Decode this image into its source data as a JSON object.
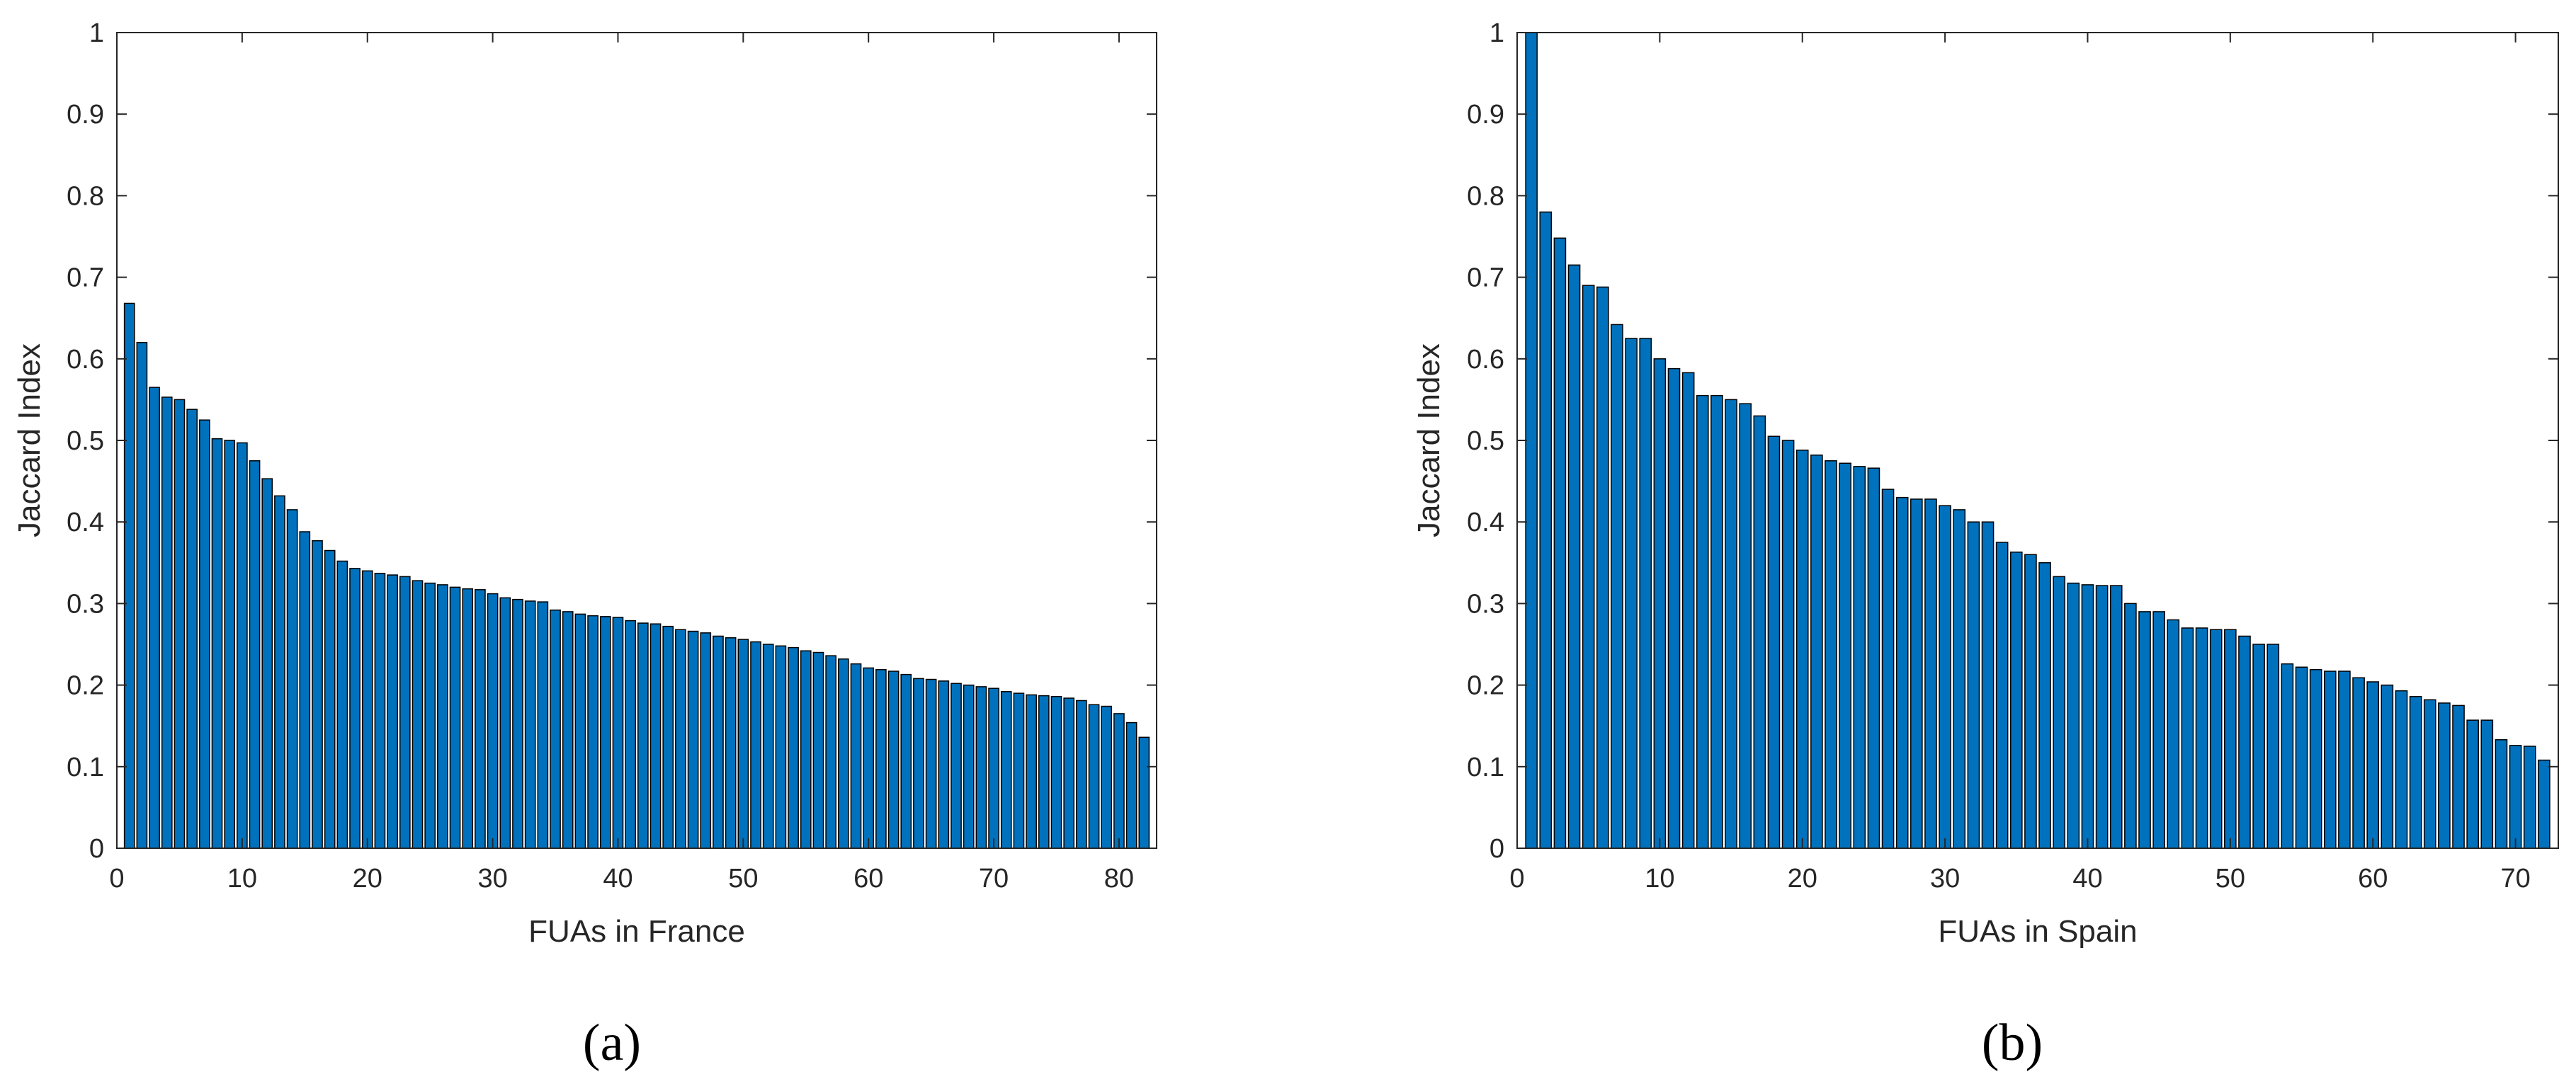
{
  "chart_data": [
    {
      "type": "bar",
      "panel_label": "(a)",
      "xlabel": "FUAs in France",
      "ylabel": "Jaccard Index",
      "xlim": [
        0,
        83
      ],
      "ylim": [
        0,
        1
      ],
      "xticks": [
        0,
        10,
        20,
        30,
        40,
        50,
        60,
        70,
        80
      ],
      "yticks": [
        0,
        0.1,
        0.2,
        0.3,
        0.4,
        0.5,
        0.6,
        0.7,
        0.8,
        0.9,
        1
      ],
      "ytick_labels": [
        "0",
        "0.1",
        "0.2",
        "0.3",
        "0.4",
        "0.5",
        "0.6",
        "0.7",
        "0.8",
        "0.9",
        "1"
      ],
      "grid": false,
      "bar_color": "#0072BD",
      "edge_color": "#000000",
      "values": [
        0.668,
        0.62,
        0.565,
        0.553,
        0.55,
        0.538,
        0.525,
        0.502,
        0.5,
        0.497,
        0.475,
        0.453,
        0.432,
        0.415,
        0.388,
        0.377,
        0.365,
        0.352,
        0.343,
        0.34,
        0.337,
        0.335,
        0.333,
        0.328,
        0.325,
        0.323,
        0.32,
        0.318,
        0.317,
        0.312,
        0.307,
        0.305,
        0.303,
        0.302,
        0.292,
        0.29,
        0.287,
        0.285,
        0.284,
        0.283,
        0.279,
        0.276,
        0.275,
        0.272,
        0.268,
        0.266,
        0.264,
        0.26,
        0.258,
        0.256,
        0.253,
        0.25,
        0.248,
        0.246,
        0.242,
        0.24,
        0.236,
        0.232,
        0.226,
        0.221,
        0.219,
        0.217,
        0.213,
        0.208,
        0.207,
        0.205,
        0.202,
        0.2,
        0.198,
        0.196,
        0.192,
        0.19,
        0.188,
        0.187,
        0.186,
        0.184,
        0.181,
        0.176,
        0.174,
        0.165,
        0.154,
        0.136
      ]
    },
    {
      "type": "bar",
      "panel_label": "(b)",
      "xlabel": "FUAs in Spain",
      "ylabel": "Jaccard Index",
      "xlim": [
        0,
        73
      ],
      "ylim": [
        0,
        1
      ],
      "xticks": [
        0,
        10,
        20,
        30,
        40,
        50,
        60,
        70
      ],
      "yticks": [
        0,
        0.1,
        0.2,
        0.3,
        0.4,
        0.5,
        0.6,
        0.7,
        0.8,
        0.9,
        1
      ],
      "ytick_labels": [
        "0",
        "0.1",
        "0.2",
        "0.3",
        "0.4",
        "0.5",
        "0.6",
        "0.7",
        "0.8",
        "0.9",
        "1"
      ],
      "grid": false,
      "bar_color": "#0072BD",
      "edge_color": "#000000",
      "values": [
        1.0,
        0.78,
        0.748,
        0.715,
        0.69,
        0.688,
        0.642,
        0.625,
        0.625,
        0.6,
        0.588,
        0.583,
        0.555,
        0.555,
        0.55,
        0.545,
        0.53,
        0.505,
        0.5,
        0.488,
        0.482,
        0.475,
        0.472,
        0.468,
        0.466,
        0.44,
        0.43,
        0.428,
        0.428,
        0.42,
        0.415,
        0.4,
        0.4,
        0.375,
        0.363,
        0.36,
        0.35,
        0.333,
        0.325,
        0.323,
        0.322,
        0.322,
        0.3,
        0.29,
        0.29,
        0.28,
        0.27,
        0.27,
        0.268,
        0.268,
        0.26,
        0.25,
        0.25,
        0.226,
        0.222,
        0.219,
        0.217,
        0.217,
        0.209,
        0.204,
        0.2,
        0.193,
        0.186,
        0.182,
        0.178,
        0.175,
        0.157,
        0.157,
        0.133,
        0.126,
        0.125,
        0.108
      ]
    }
  ]
}
